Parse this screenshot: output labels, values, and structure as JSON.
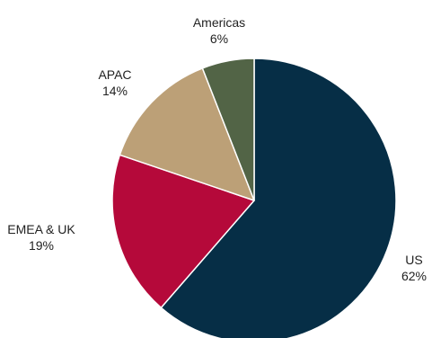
{
  "chart_data": {
    "type": "pie",
    "title": "",
    "slices": [
      {
        "name": "US",
        "value": 62,
        "label": "62%",
        "color": "#062E46"
      },
      {
        "name": "EMEA & UK",
        "value": 19,
        "label": "19%",
        "color": "#B5093A"
      },
      {
        "name": "APAC",
        "value": 14,
        "label": "14%",
        "color": "#BCA077"
      },
      {
        "name": "Americas",
        "value": 6,
        "label": "6%",
        "color": "#526446"
      }
    ],
    "start": "12 o'clock",
    "direction": "clockwise",
    "slice_border_color": "#ffffff",
    "legend": "none"
  }
}
